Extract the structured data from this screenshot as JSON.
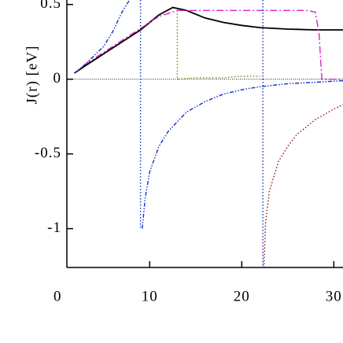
{
  "chart_data": {
    "type": "line",
    "ylabel": "J(r) [eV]",
    "xlim": [
      1,
      31
    ],
    "ylim": [
      -1.26,
      0.53
    ],
    "xticks": [
      0,
      10,
      20,
      30
    ],
    "yticks": [
      -1.0,
      -0.5,
      0,
      0.5
    ],
    "zero_line": true,
    "series": [
      {
        "color": "#000000",
        "style": "solid",
        "x": [
          1.8,
          3,
          5,
          7,
          9,
          11,
          12.5,
          14,
          16,
          18,
          20,
          22,
          25,
          28,
          31
        ],
        "values": [
          0.04,
          0.09,
          0.17,
          0.25,
          0.33,
          0.43,
          0.48,
          0.46,
          0.41,
          0.38,
          0.36,
          0.345,
          0.335,
          0.33,
          0.33
        ]
      },
      {
        "color": "#e020c0",
        "style": "dashdot",
        "x": [
          1.8,
          3,
          5,
          7,
          9,
          11,
          13,
          16,
          20,
          24,
          27,
          28,
          28.4,
          28.7,
          31
        ],
        "values": [
          0.04,
          0.1,
          0.18,
          0.26,
          0.34,
          0.42,
          0.46,
          0.46,
          0.46,
          0.46,
          0.46,
          0.45,
          0.3,
          0.0,
          0.0
        ]
      },
      {
        "color": "#1030d0",
        "style": "dashdotdot",
        "x": [
          1.8,
          3,
          5,
          6,
          7,
          7.8,
          null,
          9.2,
          9.5,
          10,
          11,
          12,
          14,
          16,
          18,
          20,
          22,
          25,
          28,
          31
        ],
        "values": [
          0.04,
          0.1,
          0.22,
          0.32,
          0.45,
          0.53,
          null,
          -1.0,
          -0.8,
          -0.62,
          -0.45,
          -0.35,
          -0.22,
          -0.15,
          -0.1,
          -0.07,
          -0.05,
          -0.03,
          -0.02,
          -0.01
        ]
      },
      {
        "color": "#8b1010",
        "style": "dotted",
        "x": [
          22.4,
          22.6,
          23,
          24,
          25,
          26,
          28,
          30,
          31
        ],
        "values": [
          -1.26,
          -0.95,
          -0.75,
          -0.55,
          -0.45,
          -0.37,
          -0.27,
          -0.2,
          -0.17
        ]
      },
      {
        "color": "#808000",
        "style": "dotted",
        "x": [
          13,
          13,
          15,
          18,
          20,
          22
        ],
        "values": [
          0.46,
          0.0,
          0.01,
          0.01,
          0.02,
          0.02
        ]
      },
      {
        "color": "#1030d0",
        "style": "dotted",
        "x": [
          9,
          9
        ],
        "values": [
          0.53,
          -1.0
        ]
      },
      {
        "color": "#1030d0",
        "style": "dotted",
        "x": [
          22.3,
          22.3
        ],
        "values": [
          0.53,
          -1.26
        ]
      }
    ]
  }
}
